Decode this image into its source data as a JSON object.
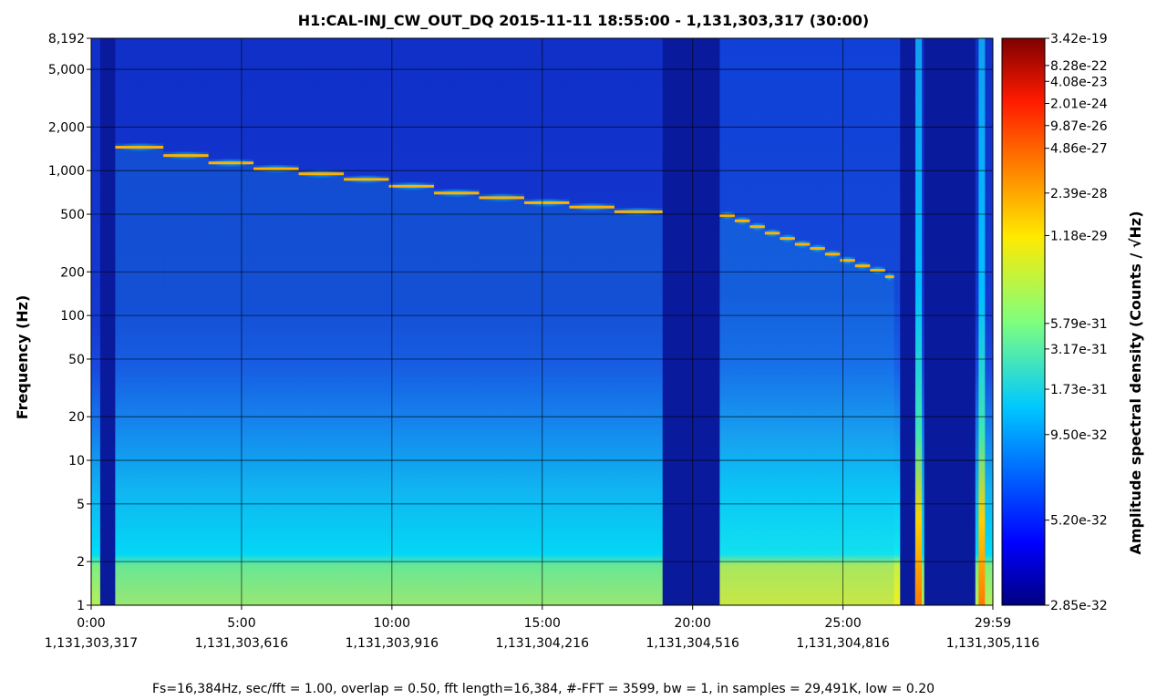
{
  "chart_data": {
    "type": "heatmap",
    "title": "H1:CAL-INJ_CW_OUT_DQ 2015-11-11 18:55:00 - 1,131,303,317 (30:00)",
    "ylabel": "Frequency (Hz)",
    "colorbar_label": "Amplitude spectral density (Counts / √Hz)",
    "footer": "Fs=16,384Hz, sec/fft = 1.00, overlap = 0.50, fft length=16,384, #-FFT = 3599, bw = 1, in samples = 29,491K, low = 0.20",
    "x_unit": "minutes",
    "xlim": [
      0,
      29.983
    ],
    "ylim": [
      1,
      8192
    ],
    "y_scale": "log",
    "grid": true,
    "colormap": "jet",
    "x_ticks": [
      {
        "value": 0,
        "label": "0:00",
        "gps": "1,131,303,317"
      },
      {
        "value": 5,
        "label": "5:00",
        "gps": "1,131,303,616"
      },
      {
        "value": 10,
        "label": "10:00",
        "gps": "1,131,303,916"
      },
      {
        "value": 15,
        "label": "15:00",
        "gps": "1,131,304,216"
      },
      {
        "value": 20,
        "label": "20:00",
        "gps": "1,131,304,516"
      },
      {
        "value": 25,
        "label": "25:00",
        "gps": "1,131,304,816"
      },
      {
        "value": 29.983,
        "label": "29:59",
        "gps": "1,131,305,116"
      }
    ],
    "y_ticks": [
      {
        "value": 1,
        "label": "1"
      },
      {
        "value": 2,
        "label": "2"
      },
      {
        "value": 5,
        "label": "5"
      },
      {
        "value": 10,
        "label": "10"
      },
      {
        "value": 20,
        "label": "20"
      },
      {
        "value": 50,
        "label": "50"
      },
      {
        "value": 100,
        "label": "100"
      },
      {
        "value": 200,
        "label": "200"
      },
      {
        "value": 500,
        "label": "500"
      },
      {
        "value": 1000,
        "label": "1,000"
      },
      {
        "value": 2000,
        "label": "2,000"
      },
      {
        "value": 5000,
        "label": "5,000"
      },
      {
        "value": 8192,
        "label": "8,192"
      }
    ],
    "colorbar_ticks": [
      {
        "frac": 1.0,
        "label": "3.42e-19"
      },
      {
        "frac": 0.952,
        "label": "8.28e-22"
      },
      {
        "frac": 0.924,
        "label": "4.08e-23"
      },
      {
        "frac": 0.885,
        "label": "2.01e-24"
      },
      {
        "frac": 0.846,
        "label": "9.87e-26"
      },
      {
        "frac": 0.806,
        "label": "4.86e-27"
      },
      {
        "frac": 0.727,
        "label": "2.39e-28"
      },
      {
        "frac": 0.652,
        "label": "1.18e-29"
      },
      {
        "frac": 0.497,
        "label": "5.79e-31"
      },
      {
        "frac": 0.452,
        "label": "3.17e-31"
      },
      {
        "frac": 0.381,
        "label": "1.73e-31"
      },
      {
        "frac": 0.301,
        "label": "9.50e-32"
      },
      {
        "frac": 0.15,
        "label": "5.20e-32"
      },
      {
        "frac": 0.0,
        "label": "2.85e-32"
      }
    ],
    "injection_steps": [
      {
        "t_start": 0.8,
        "t_end": 2.4,
        "freq_hz": 1450
      },
      {
        "t_start": 2.4,
        "t_end": 3.9,
        "freq_hz": 1270
      },
      {
        "t_start": 3.9,
        "t_end": 5.4,
        "freq_hz": 1130
      },
      {
        "t_start": 5.4,
        "t_end": 6.9,
        "freq_hz": 1030
      },
      {
        "t_start": 6.9,
        "t_end": 8.4,
        "freq_hz": 950
      },
      {
        "t_start": 8.4,
        "t_end": 9.9,
        "freq_hz": 870
      },
      {
        "t_start": 9.9,
        "t_end": 11.4,
        "freq_hz": 780
      },
      {
        "t_start": 11.4,
        "t_end": 12.9,
        "freq_hz": 700
      },
      {
        "t_start": 12.9,
        "t_end": 14.4,
        "freq_hz": 650
      },
      {
        "t_start": 14.4,
        "t_end": 15.9,
        "freq_hz": 600
      },
      {
        "t_start": 15.9,
        "t_end": 17.4,
        "freq_hz": 560
      },
      {
        "t_start": 17.4,
        "t_end": 19.0,
        "freq_hz": 520
      },
      {
        "t_start": 20.9,
        "t_end": 21.4,
        "freq_hz": 490
      },
      {
        "t_start": 21.4,
        "t_end": 21.9,
        "freq_hz": 450
      },
      {
        "t_start": 21.9,
        "t_end": 22.4,
        "freq_hz": 410
      },
      {
        "t_start": 22.4,
        "t_end": 22.9,
        "freq_hz": 370
      },
      {
        "t_start": 22.9,
        "t_end": 23.4,
        "freq_hz": 340
      },
      {
        "t_start": 23.4,
        "t_end": 23.9,
        "freq_hz": 310
      },
      {
        "t_start": 23.9,
        "t_end": 24.4,
        "freq_hz": 290
      },
      {
        "t_start": 24.4,
        "t_end": 24.9,
        "freq_hz": 265
      },
      {
        "t_start": 24.9,
        "t_end": 25.4,
        "freq_hz": 240
      },
      {
        "t_start": 25.4,
        "t_end": 25.9,
        "freq_hz": 220
      },
      {
        "t_start": 25.9,
        "t_end": 26.4,
        "freq_hz": 205
      },
      {
        "t_start": 26.4,
        "t_end": 26.7,
        "freq_hz": 185
      }
    ],
    "quiet_intervals": [
      [
        0.3,
        0.8
      ],
      [
        19.0,
        20.9
      ],
      [
        26.9,
        27.4
      ],
      [
        27.7,
        29.4
      ]
    ],
    "spike_times": [
      27.5,
      29.6
    ]
  }
}
